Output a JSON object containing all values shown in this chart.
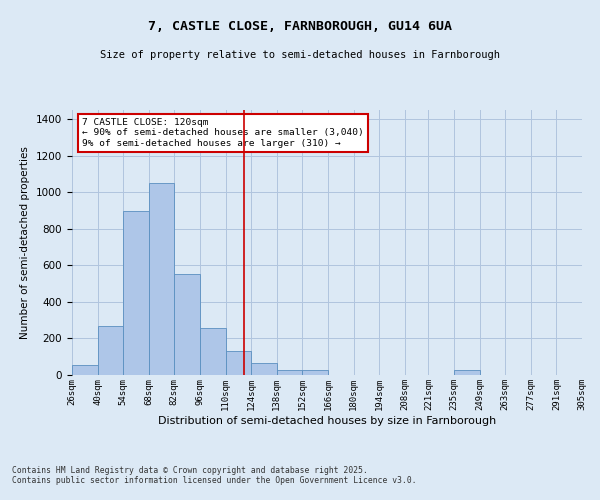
{
  "title": "7, CASTLE CLOSE, FARNBOROUGH, GU14 6UA",
  "subtitle": "Size of property relative to semi-detached houses in Farnborough",
  "xlabel": "Distribution of semi-detached houses by size in Farnborough",
  "ylabel": "Number of semi-detached properties",
  "footer_line1": "Contains HM Land Registry data © Crown copyright and database right 2025.",
  "footer_line2": "Contains public sector information licensed under the Open Government Licence v3.0.",
  "annotation_title": "7 CASTLE CLOSE: 120sqm",
  "annotation_line2": "← 90% of semi-detached houses are smaller (3,040)",
  "annotation_line3": "9% of semi-detached houses are larger (310) →",
  "property_size": 120,
  "bar_color": "#aec6e8",
  "bar_edge_color": "#5a8fc0",
  "vline_color": "#cc0000",
  "annotation_box_color": "#cc0000",
  "background_color": "#dce9f5",
  "bin_left_edges": [
    26,
    40,
    54,
    68,
    82,
    96,
    110,
    124,
    138,
    152,
    166,
    180,
    194,
    208,
    221,
    235,
    249,
    263,
    277,
    291
  ],
  "bin_heights": [
    55,
    270,
    900,
    1050,
    550,
    255,
    130,
    65,
    30,
    25,
    0,
    0,
    0,
    0,
    0,
    25,
    0,
    0,
    0,
    0
  ],
  "bin_width": 14,
  "xlim_left": 26,
  "xlim_right": 305,
  "ylim": [
    0,
    1450
  ],
  "yticks": [
    0,
    200,
    400,
    600,
    800,
    1000,
    1200,
    1400
  ],
  "grid_color": "#b0c4de",
  "tick_labels": [
    "26sqm",
    "40sqm",
    "54sqm",
    "68sqm",
    "82sqm",
    "96sqm",
    "110sqm",
    "124sqm",
    "138sqm",
    "152sqm",
    "166sqm",
    "180sqm",
    "194sqm",
    "208sqm",
    "221sqm",
    "235sqm",
    "249sqm",
    "263sqm",
    "277sqm",
    "291sqm",
    "305sqm"
  ]
}
